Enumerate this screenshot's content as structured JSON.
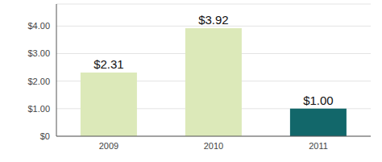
{
  "chart_data": {
    "type": "bar",
    "categories": [
      "2009",
      "2010",
      "2011"
    ],
    "values": [
      2.31,
      3.92,
      1.0
    ],
    "value_labels": [
      "$2.31",
      "$3.92",
      "$1.00"
    ],
    "data_labels": true,
    "colors": [
      "#dce9b9",
      "#dce9b9",
      "#12676a"
    ],
    "ylim": [
      0,
      4.8
    ],
    "yticks": [
      {
        "value": 0,
        "label": "$0"
      },
      {
        "value": 1,
        "label": "$1.00"
      },
      {
        "value": 2,
        "label": "$2.00"
      },
      {
        "value": 3,
        "label": "$3.00"
      },
      {
        "value": 4,
        "label": "$4.00"
      }
    ],
    "grid": true
  }
}
